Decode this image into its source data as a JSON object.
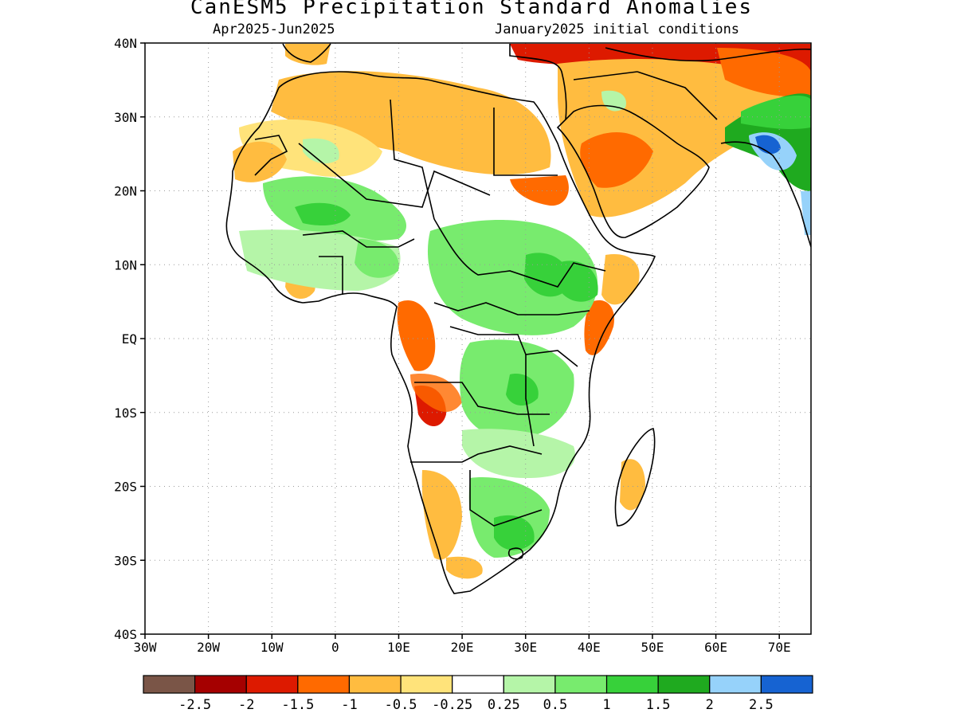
{
  "title": "CanESM5 Precipitation Standard Anomalies",
  "subtitle_left": "Apr2025-Jun2025",
  "subtitle_right": "January2025 initial conditions",
  "map": {
    "lon_range": [
      -30,
      75
    ],
    "lat_range": [
      -40,
      40
    ],
    "x_tick_labels": [
      "30W",
      "20W",
      "10W",
      "0",
      "10E",
      "20E",
      "30E",
      "40E",
      "50E",
      "60E",
      "70E"
    ],
    "y_tick_labels": [
      "40N",
      "30N",
      "20N",
      "10N",
      "EQ",
      "10S",
      "20S",
      "30S",
      "40S"
    ],
    "grid": "dotted"
  },
  "colorbar": {
    "colors": [
      "#7a5547",
      "#a50000",
      "#dd1a00",
      "#ff6a00",
      "#ffbc40",
      "#ffe37a",
      "#ffffff",
      "#b5f5a8",
      "#78eb6e",
      "#37d13a",
      "#1faa1f",
      "#96d2fa",
      "#1663d2"
    ],
    "labels": [
      "-2.5",
      "-2",
      "-1.5",
      "-1",
      "-0.5",
      "-0.25",
      "0.25",
      "0.5",
      "1",
      "1.5",
      "2",
      "2.5"
    ]
  }
}
